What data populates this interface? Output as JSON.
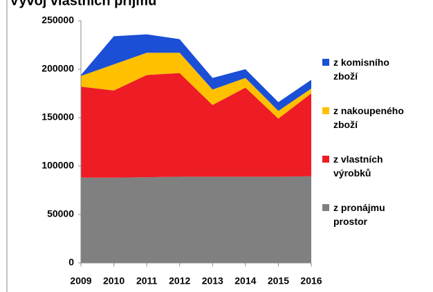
{
  "chart_data": {
    "type": "area",
    "title": "Vývoj vlastních příjmů",
    "x": [
      2009,
      2010,
      2011,
      2012,
      2013,
      2014,
      2015,
      2016
    ],
    "xlim": [
      2009,
      2016
    ],
    "xticks": [
      2009,
      2010,
      2011,
      2012,
      2013,
      2014,
      2015,
      2016
    ],
    "ylim": [
      0,
      250000
    ],
    "yticks": [
      0,
      50000,
      100000,
      150000,
      200000,
      250000
    ],
    "series": [
      {
        "name": "z pronájmu prostor",
        "color": "#808080",
        "values": [
          88000,
          88000,
          88500,
          89000,
          89000,
          89000,
          89000,
          89500
        ]
      },
      {
        "name": "z vlastních výrobků",
        "color": "#ee1c25",
        "values": [
          94000,
          90000,
          105500,
          107000,
          74000,
          92000,
          60000,
          85500
        ]
      },
      {
        "name": "z nakoupeného zboží",
        "color": "#ffc000",
        "values": [
          11000,
          27000,
          23000,
          21000,
          16000,
          10000,
          8000,
          5000
        ]
      },
      {
        "name": "z komisního zboží",
        "color": "#1a4fd6",
        "values": [
          1000,
          29000,
          19000,
          14000,
          12000,
          9000,
          9000,
          9000
        ]
      }
    ]
  }
}
